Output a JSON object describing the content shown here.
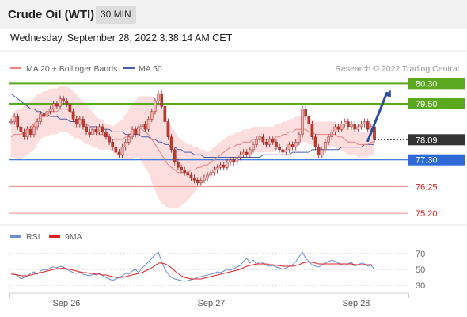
{
  "header": {
    "title": "Crude Oil (WTI)",
    "interval": "30 MIN"
  },
  "timestamp": "Wednesday, September 28, 2022 3:38:14 AM CET",
  "colors": {
    "ma20": "#f08080",
    "ma50": "#4a5fa8",
    "bollinger_fill": "#fbd3d3",
    "bull_candle": "#f8b0b0",
    "bear_candle": "#c0392b",
    "resistance": "#5aa81e",
    "support_blue": "#2e6bd8",
    "support_red": "#f08a8a",
    "current_price_bg": "#333333",
    "arrow": "#2c4f95",
    "rsi": "#6a8fd8",
    "rsi_ma": "#e02020"
  },
  "chart_data": [
    {
      "type": "candlestick",
      "legend": {
        "placement": "top-left",
        "items": [
          {
            "label": "MA 20 + Bollinger Bands",
            "color": "#f08080"
          },
          {
            "label": "MA 50",
            "color": "#4a5fa8"
          }
        ]
      },
      "credit": "Research © 2022 Trading Central",
      "y_range": [
        74.8,
        81.4
      ],
      "x_labels": [
        "Sep 26",
        "Sep 27",
        "Sep 28"
      ],
      "levels": [
        {
          "value": 80.3,
          "label": "80.30",
          "kind": "resistance"
        },
        {
          "value": 79.5,
          "label": "79.50",
          "kind": "resistance"
        },
        {
          "value": 77.3,
          "label": "77.30",
          "kind": "support-blue"
        },
        {
          "value": 76.25,
          "label": "76.25",
          "kind": "support-red"
        },
        {
          "value": 75.2,
          "label": "75.20",
          "kind": "support-red"
        }
      ],
      "current_price": {
        "value": 78.09,
        "label": "78.09"
      },
      "closes": [
        78.8,
        79.0,
        78.6,
        78.4,
        78.2,
        78.5,
        78.3,
        78.6,
        78.8,
        79.1,
        79.0,
        79.2,
        79.3,
        79.5,
        79.4,
        79.7,
        79.6,
        79.5,
        79.2,
        78.9,
        78.7,
        78.9,
        78.6,
        78.4,
        78.3,
        78.5,
        78.4,
        78.6,
        78.4,
        78.2,
        78.0,
        77.8,
        77.6,
        77.5,
        77.8,
        78.0,
        78.2,
        78.5,
        78.3,
        78.6,
        78.7,
        78.5,
        78.9,
        79.2,
        79.6,
        79.9,
        79.4,
        78.8,
        78.2,
        77.7,
        77.2,
        77.0,
        76.9,
        76.8,
        76.7,
        76.6,
        76.5,
        76.4,
        76.5,
        76.6,
        76.7,
        76.8,
        76.9,
        77.0,
        77.1,
        77.0,
        77.2,
        77.3,
        77.2,
        77.4,
        77.5,
        77.6,
        77.5,
        77.7,
        77.9,
        78.1,
        78.2,
        78.0,
        77.9,
        78.1,
        78.0,
        77.8,
        77.7,
        77.6,
        77.7,
        77.9,
        77.8,
        78.0,
        78.3,
        79.3,
        79.0,
        78.7,
        78.2,
        77.8,
        77.5,
        77.7,
        78.0,
        78.2,
        78.4,
        78.6,
        78.5,
        78.7,
        78.8,
        78.6,
        78.7,
        78.5,
        78.6,
        78.7,
        78.8,
        78.5,
        78.6,
        78.09
      ],
      "ma20": [
        78.2,
        78.3,
        78.3,
        78.3,
        78.4,
        78.5,
        78.6,
        78.7,
        78.9,
        79.0,
        79.1,
        79.1,
        79.2,
        79.2,
        79.2,
        79.3,
        79.3,
        79.3,
        79.2,
        79.1,
        79.0,
        78.9,
        78.8,
        78.7,
        78.6,
        78.5,
        78.4,
        78.3,
        78.3,
        78.2,
        78.2,
        78.1,
        78.1,
        78.1,
        78.1,
        78.2,
        78.3,
        78.4,
        78.5,
        78.6,
        78.5,
        78.4,
        78.3,
        78.1,
        77.9,
        77.7,
        77.5,
        77.3,
        77.1,
        77.0,
        76.9,
        76.8,
        76.8,
        76.8,
        76.8,
        76.9,
        76.9,
        77.0,
        77.0,
        77.1,
        77.1,
        77.2,
        77.3,
        77.4,
        77.5,
        77.6,
        77.7,
        77.8,
        77.8,
        77.9,
        77.9,
        78.0,
        78.0,
        78.0,
        78.1,
        78.1,
        78.1,
        78.1,
        78.1,
        78.1,
        78.1,
        78.2,
        78.2,
        78.3,
        78.3,
        78.4,
        78.4,
        78.5,
        78.5,
        78.5,
        78.5,
        78.4,
        78.4,
        78.3,
        78.3,
        78.3,
        78.3,
        78.3,
        78.3,
        78.3,
        78.2,
        78.2,
        78.1,
        78.0,
        78.0,
        78.0,
        77.9,
        77.9,
        77.9,
        77.9,
        78.0,
        78.0
      ],
      "ma50": [
        79.9,
        79.8,
        79.7,
        79.6,
        79.5,
        79.4,
        79.3,
        79.3,
        79.2,
        79.2,
        79.1,
        79.1,
        79.0,
        79.0,
        79.0,
        78.9,
        78.9,
        78.9,
        78.8,
        78.8,
        78.8,
        78.7,
        78.7,
        78.7,
        78.6,
        78.6,
        78.6,
        78.5,
        78.5,
        78.5,
        78.5,
        78.4,
        78.4,
        78.4,
        78.4,
        78.3,
        78.3,
        78.3,
        78.3,
        78.3,
        78.2,
        78.2,
        78.2,
        78.1,
        78.1,
        78.0,
        78.0,
        77.9,
        77.9,
        77.8,
        77.8,
        77.7,
        77.7,
        77.6,
        77.6,
        77.6,
        77.5,
        77.5,
        77.5,
        77.4,
        77.4,
        77.4,
        77.4,
        77.4,
        77.4,
        77.4,
        77.4,
        77.4,
        77.4,
        77.4,
        77.4,
        77.4,
        77.4,
        77.4,
        77.4,
        77.4,
        77.4,
        77.5,
        77.5,
        77.5,
        77.5,
        77.5,
        77.5,
        77.5,
        77.5,
        77.5,
        77.6,
        77.6,
        77.6,
        77.6,
        77.6,
        77.6,
        77.7,
        77.7,
        77.7,
        77.7,
        77.7,
        77.7,
        77.7,
        77.7,
        77.7,
        77.8,
        77.8,
        77.8,
        77.8,
        77.8,
        77.8,
        77.8,
        77.9,
        77.9,
        77.9,
        77.9
      ],
      "band_width": [
        0.8,
        0.9,
        1.0,
        1.0,
        1.0,
        1.0,
        1.0,
        1.0,
        1.0,
        0.9,
        0.9,
        0.9,
        0.9,
        0.9,
        0.9,
        0.9,
        0.9,
        0.9,
        0.9,
        0.9,
        0.9,
        0.8,
        0.8,
        0.8,
        0.7,
        0.7,
        0.6,
        0.6,
        0.6,
        0.5,
        0.5,
        0.5,
        0.6,
        0.7,
        0.8,
        0.9,
        1.0,
        1.1,
        1.1,
        1.2,
        1.3,
        1.4,
        1.5,
        1.7,
        1.8,
        1.9,
        1.9,
        1.8,
        1.7,
        1.6,
        1.5,
        1.4,
        1.3,
        1.2,
        1.1,
        1.0,
        0.9,
        0.8,
        0.7,
        0.6,
        0.5,
        0.5,
        0.5,
        0.5,
        0.5,
        0.5,
        0.5,
        0.5,
        0.5,
        0.5,
        0.5,
        0.5,
        0.5,
        0.5,
        0.5,
        0.5,
        0.5,
        0.5,
        0.5,
        0.5,
        0.5,
        0.5,
        0.5,
        0.5,
        0.5,
        0.5,
        0.5,
        0.5,
        0.5,
        0.5,
        0.5,
        0.5,
        0.5,
        0.5,
        0.5,
        0.5,
        0.5,
        0.5,
        0.5,
        0.5,
        0.5,
        0.5,
        0.5,
        0.5,
        0.5,
        0.5,
        0.5,
        0.5,
        0.5,
        0.5,
        0.5,
        0.5
      ],
      "arrow": {
        "from_index": 109,
        "from_value": 78.05,
        "to_index": 116,
        "to_value": 80.05
      }
    },
    {
      "type": "line",
      "legend": {
        "placement": "top-left",
        "items": [
          {
            "label": "RSI",
            "color": "#6a8fd8"
          },
          {
            "label": "9MA",
            "color": "#e02020"
          }
        ]
      },
      "y_range": [
        20,
        80
      ],
      "y_ticks": [
        70,
        50,
        30
      ],
      "rsi": [
        46,
        44,
        42,
        38,
        40,
        42,
        45,
        47,
        44,
        48,
        50,
        49,
        52,
        53,
        52,
        54,
        53,
        50,
        48,
        46,
        45,
        47,
        44,
        43,
        42,
        44,
        43,
        45,
        42,
        40,
        38,
        36,
        38,
        40,
        42,
        45,
        44,
        48,
        50,
        46,
        52,
        55,
        60,
        64,
        69,
        72,
        60,
        50,
        44,
        40,
        38,
        37,
        36,
        35,
        36,
        37,
        38,
        40,
        41,
        42,
        43,
        44,
        45,
        47,
        46,
        48,
        50,
        49,
        51,
        53,
        55,
        60,
        64,
        58,
        62,
        56,
        60,
        58,
        55,
        54,
        55,
        53,
        52,
        50,
        52,
        54,
        56,
        60,
        66,
        72,
        64,
        60,
        56,
        54,
        53,
        56,
        58,
        60,
        62,
        60,
        58,
        56,
        55,
        57,
        59,
        54,
        56,
        58,
        57,
        54,
        55,
        50
      ],
      "rsi_ma": [
        44,
        44,
        43,
        42,
        42,
        42,
        43,
        44,
        45,
        46,
        47,
        48,
        49,
        50,
        51,
        51,
        52,
        51,
        50,
        49,
        48,
        47,
        46,
        46,
        45,
        45,
        44,
        44,
        43,
        43,
        42,
        41,
        40,
        40,
        40,
        41,
        42,
        43,
        44,
        45,
        46,
        48,
        50,
        52,
        55,
        58,
        58,
        57,
        55,
        52,
        48,
        45,
        42,
        40,
        39,
        38,
        38,
        38,
        38,
        39,
        40,
        41,
        42,
        43,
        44,
        45,
        46,
        47,
        48,
        49,
        50,
        52,
        54,
        55,
        56,
        57,
        57,
        57,
        57,
        56,
        56,
        55,
        55,
        54,
        54,
        54,
        54,
        55,
        56,
        58,
        59,
        60,
        59,
        58,
        57,
        57,
        57,
        57,
        57,
        57,
        57,
        57,
        57,
        57,
        57,
        56,
        56,
        56,
        56,
        56,
        56,
        55
      ]
    }
  ]
}
